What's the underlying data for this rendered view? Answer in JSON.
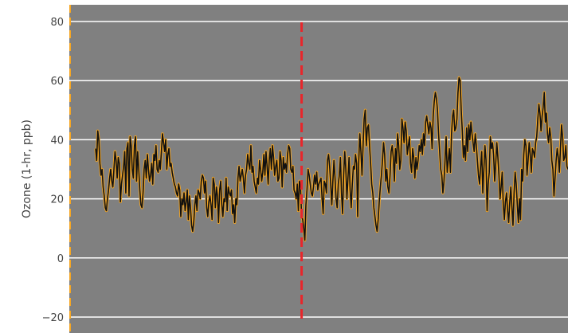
{
  "chart_data": {
    "type": "line",
    "ylabel": "Ozone (1-hr, ppb)",
    "xlabel": "",
    "ylim": [
      -22,
      85
    ],
    "yticks": [
      80,
      60,
      40,
      20,
      0,
      -20
    ],
    "grid": true,
    "reference_line": {
      "x_index": 191,
      "style": "dashed",
      "color": "#e8262b"
    },
    "colors": {
      "plot_background": "#808080",
      "series_line": "#111111",
      "series_markers": "#f5a623",
      "grid": "#ffffff"
    },
    "series": [
      {
        "values": [
          37,
          33,
          43,
          40,
          32,
          28,
          30,
          24,
          21,
          17,
          16,
          20,
          23,
          27,
          30,
          26,
          24,
          30,
          36,
          33,
          27,
          34,
          32,
          19,
          25,
          28,
          31,
          36,
          22,
          37,
          39,
          21,
          41,
          38,
          30,
          27,
          38,
          41,
          26,
          36,
          30,
          23,
          18,
          17,
          22,
          30,
          33,
          27,
          35,
          30,
          26,
          28,
          32,
          25,
          35,
          33,
          38,
          30,
          29,
          33,
          30,
          36,
          42,
          39,
          36,
          40,
          30,
          35,
          37,
          31,
          32,
          29,
          27,
          25,
          24,
          22,
          21,
          25,
          23,
          14,
          20,
          18,
          22,
          16,
          19,
          23,
          13,
          21,
          17,
          11,
          9,
          12,
          18,
          21,
          16,
          23,
          22,
          20,
          26,
          28,
          27,
          22,
          26,
          17,
          14,
          19,
          21,
          18,
          13,
          27,
          25,
          17,
          24,
          21,
          12,
          23,
          26,
          18,
          14,
          20,
          19,
          27,
          16,
          24,
          22,
          21,
          23,
          15,
          18,
          12,
          20,
          18,
          27,
          31,
          26,
          28,
          30,
          27,
          22,
          28,
          30,
          35,
          32,
          30,
          38,
          29,
          31,
          26,
          24,
          22,
          27,
          25,
          33,
          30,
          26,
          29,
          35,
          28,
          36,
          31,
          25,
          33,
          37,
          30,
          38,
          34,
          28,
          31,
          33,
          26,
          27,
          36,
          33,
          24,
          34,
          30,
          32,
          29,
          35,
          38,
          37,
          30,
          29,
          31,
          23,
          22,
          20,
          25,
          16,
          26,
          24,
          14,
          13,
          10,
          6,
          18,
          23,
          30,
          28,
          25,
          22,
          21,
          24,
          28,
          25,
          29,
          23,
          25,
          26,
          27,
          20,
          15,
          26,
          25,
          22,
          33,
          35,
          31,
          25,
          18,
          26,
          33,
          27,
          20,
          17,
          25,
          28,
          34,
          22,
          15,
          28,
          36,
          30,
          20,
          27,
          34,
          23,
          17,
          25,
          31,
          30,
          35,
          32,
          14,
          33,
          42,
          36,
          28,
          38,
          47,
          50,
          38,
          44,
          45,
          38,
          32,
          25,
          22,
          17,
          14,
          11,
          9,
          13,
          19,
          24,
          28,
          33,
          39,
          35,
          26,
          30,
          24,
          22,
          28,
          36,
          38,
          34,
          26,
          37,
          32,
          42,
          38,
          30,
          33,
          47,
          44,
          39,
          46,
          43,
          35,
          38,
          41,
          32,
          29,
          37,
          34,
          27,
          34,
          30,
          33,
          38,
          36,
          40,
          35,
          42,
          38,
          46,
          48,
          45,
          42,
          46,
          44,
          37,
          48,
          53,
          56,
          54,
          50,
          42,
          36,
          30,
          28,
          22,
          26,
          33,
          41,
          29,
          33,
          37,
          29,
          42,
          48,
          50,
          43,
          44,
          47,
          56,
          61,
          60,
          50,
          43,
          34,
          38,
          33,
          44,
          36,
          45,
          40,
          46,
          42,
          39,
          36,
          42,
          38,
          33,
          28,
          25,
          31,
          36,
          22,
          30,
          38,
          33,
          16,
          25,
          29,
          41,
          37,
          39,
          35,
          26,
          32,
          39,
          34,
          28,
          20,
          24,
          29,
          18,
          13,
          19,
          22,
          16,
          12,
          19,
          24,
          17,
          11,
          22,
          29,
          25,
          18,
          12,
          20,
          13,
          30,
          26,
          35,
          40,
          38,
          28,
          33,
          39,
          35,
          29,
          37,
          36,
          34,
          39,
          41,
          47,
          52,
          49,
          43,
          48,
          51,
          56,
          46,
          49,
          42,
          39,
          44,
          41,
          33,
          30,
          21,
          27,
          33,
          37,
          34,
          29,
          37,
          45,
          41,
          33,
          34,
          38,
          31,
          30
        ]
      }
    ]
  }
}
